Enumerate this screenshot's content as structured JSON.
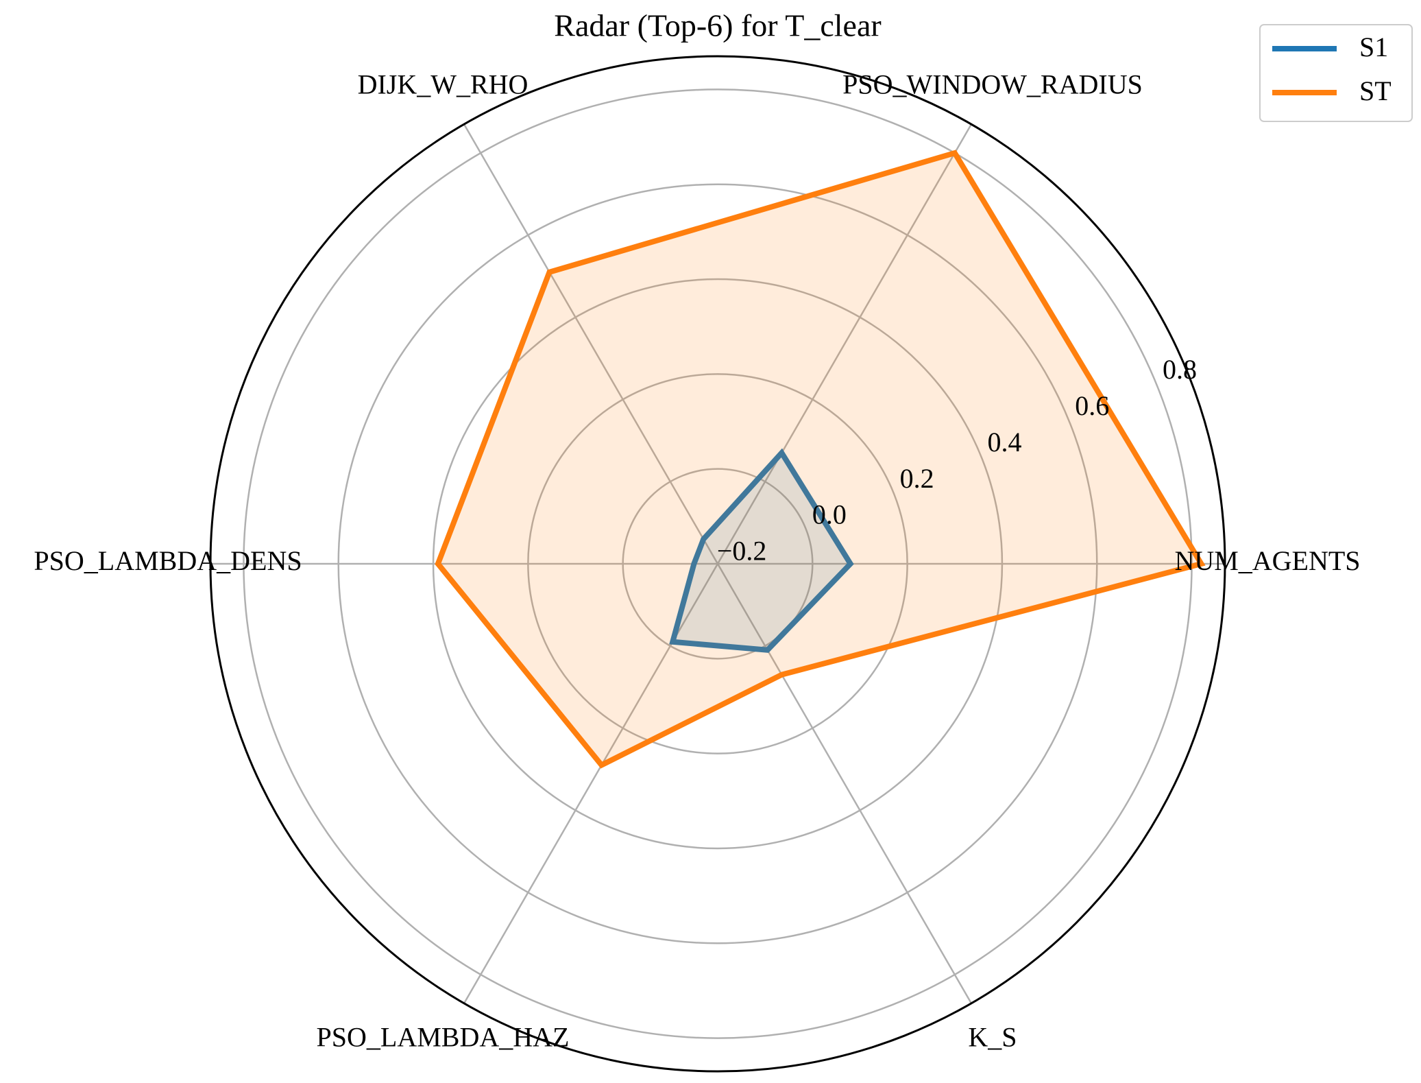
{
  "chart_data": {
    "type": "radar",
    "title": "Radar (Top-6) for T_clear",
    "categories": [
      "NUM_AGENTS",
      "PSO_WINDOW_RADIUS",
      "DIJK_W_RHO",
      "PSO_LAMBDA_DENS",
      "PSO_LAMBDA_HAZ",
      "K_S"
    ],
    "series": [
      {
        "name": "S1",
        "color": "#1f77b4",
        "values": [
          0.08,
          0.07,
          -0.14,
          -0.15,
          -0.01,
          0.01
        ]
      },
      {
        "name": "ST",
        "color": "#ff7f0e",
        "values": [
          0.82,
          0.8,
          0.51,
          0.39,
          0.29,
          0.07
        ]
      }
    ],
    "ylim": [
      -0.2,
      0.87
    ],
    "yticks": [
      {
        "value": -0.2,
        "label": "−0.2"
      },
      {
        "value": 0,
        "label": "0.0"
      },
      0.2,
      0.4,
      0.6,
      0.8
    ],
    "grid": true,
    "legend": "upper right"
  }
}
